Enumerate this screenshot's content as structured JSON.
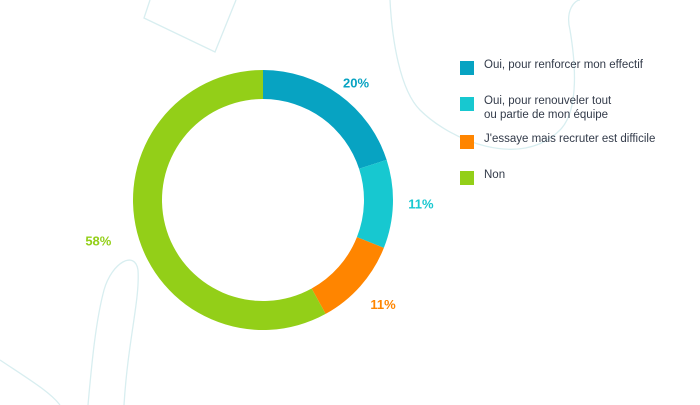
{
  "chart_data": {
    "type": "pie",
    "categories": [
      "Oui, pour renforcer mon effectif",
      "Oui, pour renouveler tout\nou partie de mon équipe",
      "J'essaye mais recruter est difficile",
      "Non"
    ],
    "values": [
      20,
      11,
      11,
      58
    ],
    "value_labels": [
      "20%",
      "11%",
      "11%",
      "58%"
    ],
    "colors": [
      "#07a3c2",
      "#17c8d0",
      "#ff8500",
      "#93cf18"
    ],
    "donut": true,
    "legend_position": "right",
    "title": "",
    "xlabel": "",
    "ylabel": ""
  }
}
